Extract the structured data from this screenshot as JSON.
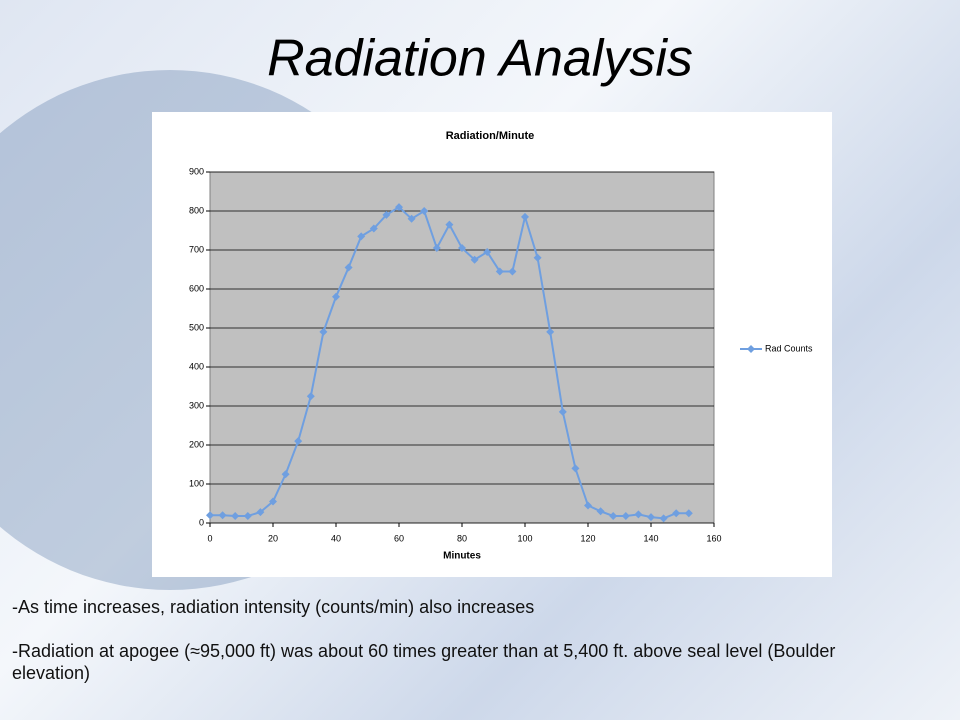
{
  "title": "Radiation Analysis",
  "chart_data": {
    "type": "line",
    "title": "Radiation/Minute",
    "x_label": "Minutes",
    "x": [
      0,
      4,
      8,
      12,
      16,
      20,
      24,
      28,
      32,
      36,
      40,
      44,
      48,
      52,
      56,
      60,
      64,
      68,
      72,
      76,
      80,
      84,
      88,
      92,
      96,
      100,
      104,
      108,
      112,
      116,
      120,
      124,
      128,
      132,
      136,
      140,
      144,
      148,
      152
    ],
    "series": [
      {
        "name": "Rad Counts",
        "color": "#6f9fe0",
        "values": [
          20,
          20,
          18,
          18,
          28,
          55,
          125,
          210,
          325,
          490,
          580,
          655,
          735,
          755,
          790,
          810,
          780,
          800,
          705,
          765,
          705,
          675,
          695,
          645,
          645,
          785,
          680,
          490,
          285,
          140,
          45,
          30,
          18,
          18,
          22,
          15,
          12,
          25,
          25
        ]
      }
    ],
    "xlim": [
      0,
      160
    ],
    "xticks": [
      0,
      20,
      40,
      60,
      80,
      100,
      120,
      140,
      160
    ],
    "ylim": [
      0,
      900
    ],
    "yticks": [
      0,
      100,
      200,
      300,
      400,
      500,
      600,
      700,
      800,
      900
    ],
    "grid": true,
    "legend": "right"
  },
  "bullets": [
    "-As time increases, radiation intensity (counts/min) also increases",
    "-Radiation at apogee (≈95,000 ft) was about 60 times greater than at 5,400 ft. above seal level (Boulder elevation)"
  ]
}
